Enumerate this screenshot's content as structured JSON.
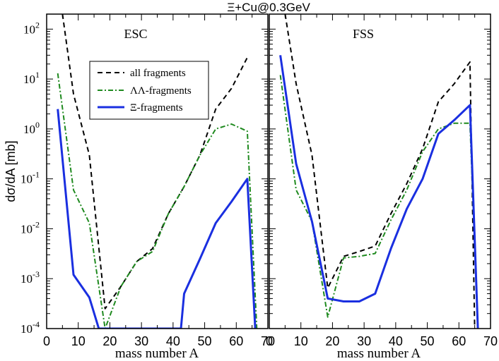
{
  "title": "Ξ+Cu@0.3GeV",
  "ylabel": "dσ/dA [mb]",
  "legend": [
    {
      "label": "all fragments",
      "color": "#000000",
      "dash": "dashed"
    },
    {
      "label": "ΛΛ-fragments",
      "color": "#1f8a1f",
      "dash": "dash-dot"
    },
    {
      "label": "Ξ-fragments",
      "color": "#1a2fe0",
      "dash": "solid"
    }
  ],
  "colors": {
    "all": "#000000",
    "ll": "#1f8a1f",
    "xi": "#1a2fe0"
  },
  "chart_data": [
    {
      "type": "line",
      "panel_label": "ESC",
      "xlabel": "mass number A",
      "ylabel": "dσ/dA [mb]",
      "xlim": [
        0,
        70
      ],
      "ylim": [
        0.0001,
        200
      ],
      "yscale": "log",
      "xticks": [
        "0",
        "10",
        "20",
        "30",
        "40",
        "50",
        "60",
        "70"
      ],
      "yticks": [
        "10-4",
        "10-3",
        "10-2",
        "10-1",
        "100",
        "101",
        "102"
      ],
      "series": [
        {
          "name": "all fragments",
          "key": "all",
          "x": [
            5,
            8.5,
            13.5,
            18.5,
            23.5,
            28.5,
            33.5,
            38.5,
            43.5,
            48.5,
            53.5,
            58.5,
            63.5
          ],
          "y": [
            200,
            5,
            0.3,
            0.00025,
            0.0007,
            0.0022,
            0.004,
            0.02,
            0.07,
            0.3,
            2.5,
            6.5,
            27
          ]
        },
        {
          "name": "ΛΛ-fragments",
          "key": "ll",
          "x": [
            3.5,
            8.5,
            13.5,
            18.5,
            23.5,
            28.5,
            33.5,
            38.5,
            43.5,
            48.5,
            53.5,
            58.5,
            63.5,
            66.5
          ],
          "y": [
            13,
            0.06,
            0.013,
            0.0001,
            0.0007,
            0.0022,
            0.0035,
            0.02,
            0.07,
            0.3,
            1.0,
            1.25,
            0.9,
            0.0001
          ]
        },
        {
          "name": "Ξ-fragments",
          "key": "xi",
          "x": [
            3.5,
            8.5,
            13.5,
            16.5,
            42.5,
            43.5,
            48.5,
            53.5,
            58.5,
            63.5,
            66
          ],
          "y": [
            2.5,
            0.0012,
            0.00042,
            0.0001,
            0.0001,
            0.0005,
            0.0025,
            0.013,
            0.035,
            0.1,
            0.0001
          ]
        }
      ]
    },
    {
      "type": "line",
      "panel_label": "FSS",
      "xlabel": "mass number A",
      "xlim": [
        0,
        70
      ],
      "ylim": [
        0.0001,
        200
      ],
      "yscale": "log",
      "xticks": [
        "0",
        "10",
        "20",
        "30",
        "40",
        "50",
        "60",
        "70"
      ],
      "series": [
        {
          "name": "all fragments",
          "key": "all",
          "x": [
            5,
            8.5,
            13.5,
            18.5,
            23.5,
            28.5,
            33.5,
            38.5,
            43.5,
            48.5,
            53.5,
            58.5,
            63.5,
            65
          ],
          "y": [
            200,
            8,
            0.3,
            0.00065,
            0.0028,
            0.0035,
            0.0045,
            0.02,
            0.08,
            0.4,
            3.5,
            8,
            22,
            0.0001
          ]
        },
        {
          "name": "ΛΛ-fragments",
          "key": "ll",
          "x": [
            3.5,
            8.5,
            13.5,
            18.5,
            23.5,
            28.5,
            33.5,
            38.5,
            43.5,
            48.5,
            53.5,
            58.5,
            63.5,
            66
          ],
          "y": [
            12,
            0.06,
            0.014,
            0.00017,
            0.0026,
            0.0028,
            0.0032,
            0.015,
            0.06,
            0.35,
            1.0,
            1.3,
            1.3,
            0.0001
          ]
        },
        {
          "name": "Ξ-fragments",
          "key": "xi",
          "x": [
            3.5,
            8.5,
            13.5,
            18.5,
            23.5,
            28.5,
            33.5,
            38.5,
            43.5,
            48.5,
            53.5,
            58.5,
            63.5,
            66
          ],
          "y": [
            30,
            0.2,
            0.014,
            0.0004,
            0.00035,
            0.00035,
            0.0005,
            0.004,
            0.025,
            0.1,
            0.8,
            1.5,
            3.0,
            0.0001
          ]
        }
      ]
    }
  ]
}
